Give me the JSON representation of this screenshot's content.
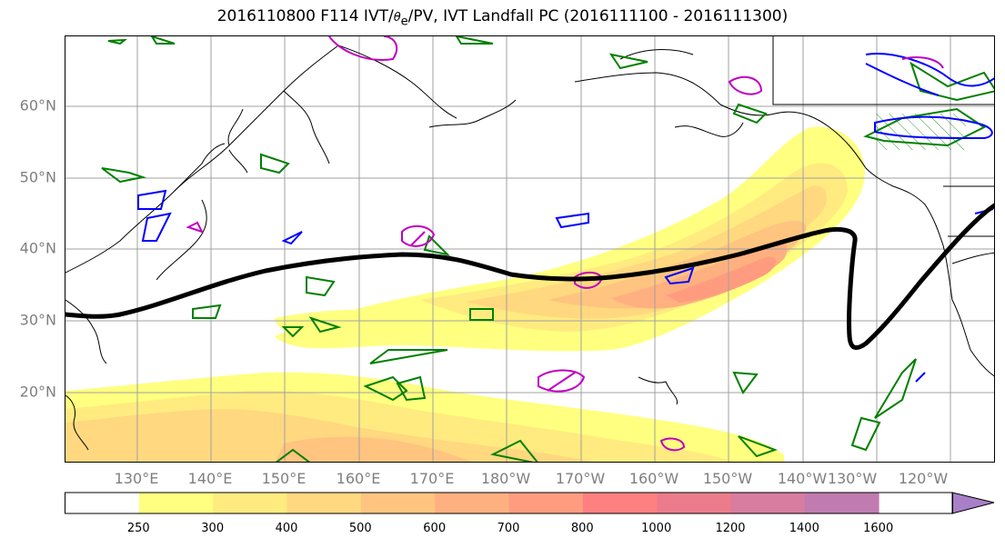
{
  "title": {
    "prefix": "2016110800 F114 IVT/",
    "theta": "θ",
    "theta_sub": "e",
    "suffix": "/PV, IVT Landfall PC (2016111100 - 2016111300)"
  },
  "map": {
    "lat_labels": [
      "60°N",
      "50°N",
      "40°N",
      "30°N",
      "20°N"
    ],
    "lon_labels": [
      "130°E",
      "140°E",
      "150°E",
      "160°E",
      "170°E",
      "180°W",
      "170°W",
      "160°W",
      "150°W",
      "140°W",
      "130°W",
      "120°W"
    ],
    "field": "IVT",
    "contour_colors": {
      "theta_e": "#008000",
      "pv_low": "#0000ff",
      "pv_high": "#c000c0",
      "landfall_pc": "#000000",
      "coastline": "#000000"
    },
    "grid": true
  },
  "colorbar": {
    "ticks": [
      "250",
      "300",
      "400",
      "500",
      "600",
      "700",
      "800",
      "1000",
      "1200",
      "1400",
      "1600"
    ],
    "colors": [
      "#ffffff",
      "#ffff80",
      "#ffeb80",
      "#ffd880",
      "#ffc480",
      "#ffb080",
      "#ff9c80",
      "#ff8080",
      "#ec7c8c",
      "#d87ca0",
      "#c07cb0",
      "#a880c8"
    ],
    "extend": "max"
  }
}
